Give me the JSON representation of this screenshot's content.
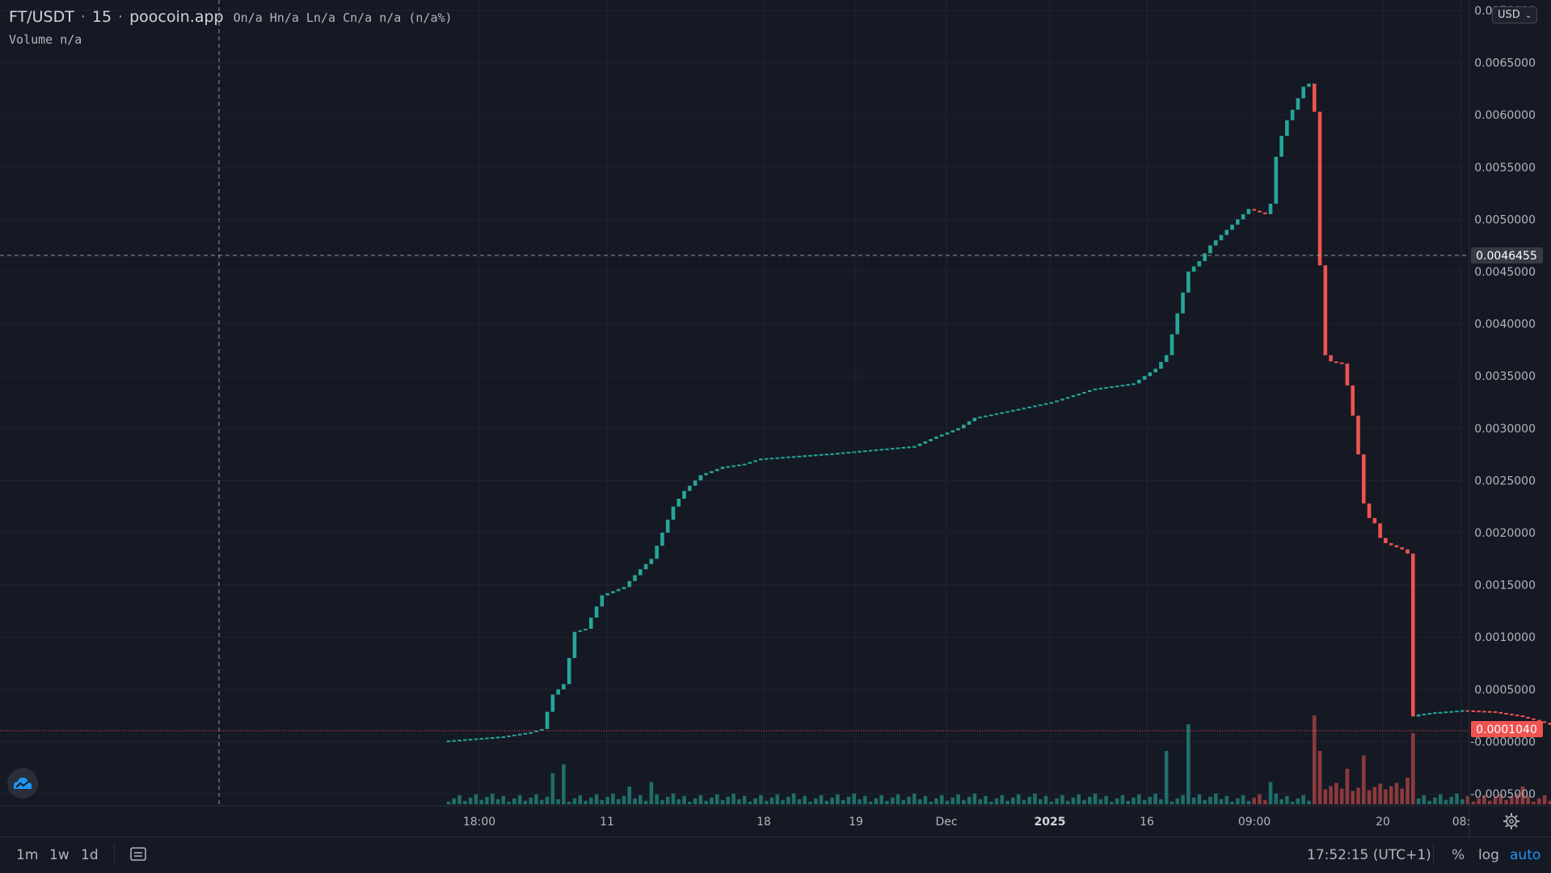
{
  "legend": {
    "symbol": "FT/USDT",
    "interval": "15",
    "source": "poocoin.app",
    "ohlc_text": "On/a Hn/a Ln/a Cn/a n/a (n/a%)",
    "volume_text": "Volume n/a"
  },
  "currency_button": "USD",
  "colors": {
    "background": "#151924",
    "grid": "#1f2330",
    "up": "#26a69a",
    "down": "#ef5350",
    "up_volume": "#1f6e6a",
    "down_volume": "#8c3a3d",
    "axis_text": "#b2b5be",
    "crosshair_label_bg": "#363a45",
    "last_price_bg": "#ef5350"
  },
  "toolbar": {
    "intervals": [
      "1m",
      "1w",
      "1d"
    ],
    "time": "17:52:15 (UTC+1)",
    "percent": "%",
    "log": "log",
    "auto": "auto",
    "compare_icon": "compare-icon",
    "settings_icon": "gear-icon",
    "logo_icon": "cloud-logo-icon"
  },
  "chart_data": {
    "type": "candlestick",
    "title": "",
    "ylim": [
      -0.0006,
      0.007
    ],
    "y_ticks": [
      "0.0070000",
      "0.0065000",
      "0.0060000",
      "0.0055000",
      "0.0050000",
      "0.0045000",
      "0.0040000",
      "0.0035000",
      "0.0030000",
      "0.0025000",
      "0.0020000",
      "0.0015000",
      "0.0010000",
      "0.0005000",
      "-0.0000000",
      "-0.0005000"
    ],
    "x_ticks": [
      "18:00",
      "11",
      "18",
      "19",
      "Dec",
      "2025",
      "16",
      "09:00",
      "20",
      "08:"
    ],
    "x_ticks_bold": [
      "2025"
    ],
    "crosshair_price_label": "0.0046455",
    "last_price_label": "0.0001040",
    "last_price": 0.000104,
    "up_color": "#26a69a",
    "down_color": "#ef5350",
    "close_path": [
      [
        0,
        1e-05
      ],
      [
        10,
        5e-05
      ],
      [
        15,
        9e-05
      ],
      [
        17,
        0.00012
      ],
      [
        19,
        0.00045
      ],
      [
        21,
        0.00055
      ],
      [
        23,
        0.00105
      ],
      [
        25,
        0.00108
      ],
      [
        28,
        0.0014
      ],
      [
        32,
        0.00148
      ],
      [
        35,
        0.00165
      ],
      [
        37,
        0.00175
      ],
      [
        39,
        0.002
      ],
      [
        41,
        0.00225
      ],
      [
        43,
        0.0024
      ],
      [
        46,
        0.00255
      ],
      [
        50,
        0.00263
      ],
      [
        54,
        0.00266
      ],
      [
        57,
        0.00271
      ],
      [
        70,
        0.00276
      ],
      [
        85,
        0.00283
      ],
      [
        89,
        0.00292
      ],
      [
        93,
        0.003
      ],
      [
        96,
        0.0031
      ],
      [
        110,
        0.00325
      ],
      [
        118,
        0.00338
      ],
      [
        125,
        0.00343
      ],
      [
        129,
        0.00357
      ],
      [
        131,
        0.0037
      ],
      [
        132,
        0.0039
      ],
      [
        133,
        0.0041
      ],
      [
        135,
        0.0045
      ],
      [
        137,
        0.0046
      ],
      [
        139,
        0.00475
      ],
      [
        141,
        0.00485
      ],
      [
        144,
        0.005
      ],
      [
        146,
        0.0051
      ],
      [
        149,
        0.00505
      ],
      [
        150,
        0.00515
      ],
      [
        151,
        0.0056
      ],
      [
        152,
        0.0058
      ],
      [
        153,
        0.00595
      ],
      [
        154,
        0.00605
      ],
      [
        155,
        0.00616
      ],
      [
        156,
        0.00627
      ],
      [
        157,
        0.0063
      ]
    ],
    "down_path": [
      [
        158,
        0.00603
      ],
      [
        159,
        0.00456
      ],
      [
        160,
        0.0037
      ],
      [
        161,
        0.00364
      ],
      [
        163,
        0.00362
      ],
      [
        164,
        0.00341
      ],
      [
        165,
        0.00312
      ],
      [
        166,
        0.00275
      ],
      [
        167,
        0.00228
      ],
      [
        168,
        0.00214
      ],
      [
        169,
        0.00209
      ],
      [
        170,
        0.00195
      ],
      [
        171,
        0.0019
      ],
      [
        173,
        0.00186
      ],
      [
        174,
        0.00184
      ],
      [
        175,
        0.0018
      ],
      [
        176,
        0.00024
      ]
    ],
    "tail_path": [
      [
        177,
        0.00026
      ],
      [
        180,
        0.00028
      ],
      [
        185,
        0.0003
      ],
      [
        190,
        0.00029
      ],
      [
        195,
        0.00025
      ],
      [
        200,
        0.00018
      ],
      [
        203,
        0.00012
      ],
      [
        204,
        0.000104
      ]
    ],
    "volume_peaks": [
      [
        19,
        0.35
      ],
      [
        21,
        0.45
      ],
      [
        33,
        0.2
      ],
      [
        37,
        0.25
      ],
      [
        131,
        0.6
      ],
      [
        135,
        0.9
      ],
      [
        150,
        0.25
      ],
      [
        158,
        1.0
      ],
      [
        159,
        0.6
      ],
      [
        164,
        0.4
      ],
      [
        167,
        0.55
      ],
      [
        175,
        0.3
      ],
      [
        176,
        0.8
      ],
      [
        196,
        0.2
      ],
      [
        203,
        0.22
      ]
    ]
  }
}
